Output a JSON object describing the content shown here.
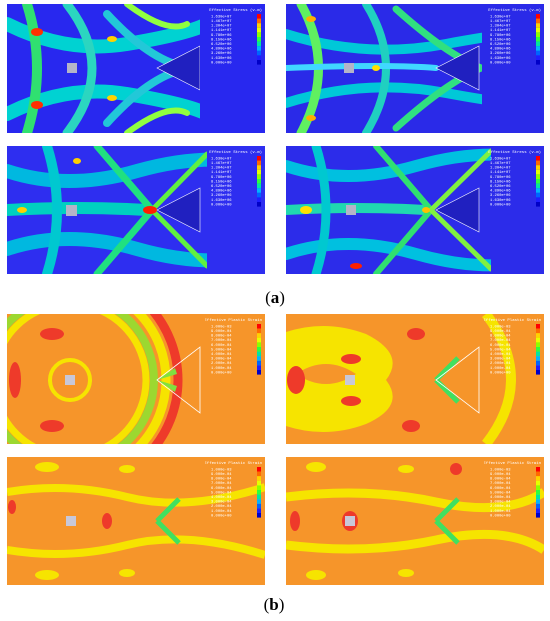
{
  "figure": {
    "caption_a": "a",
    "caption_b": "b",
    "group_a": {
      "legend_title": "Effective Stress (v-m)",
      "legend_values": [
        "1.630e+07",
        "1.467e+07",
        "1.304e+07",
        "1.141e+07",
        "9.780e+06",
        "8.150e+06",
        "6.520e+06",
        "4.890e+06",
        "3.260e+06",
        "1.630e+06",
        "0.000e+00"
      ],
      "legend_colors": [
        "#ff0000",
        "#ff6a00",
        "#ffd200",
        "#e6ff00",
        "#8cff00",
        "#2eff3c",
        "#00e6a0",
        "#00b4ff",
        "#0064ff",
        "#1e1eff",
        "#0000c8"
      ],
      "background_color": "#2828ef"
    },
    "group_b": {
      "legend_title": "Effective Plastic Strain",
      "legend_values": [
        "1.000e-03",
        "9.000e-04",
        "8.000e-04",
        "7.000e-04",
        "6.000e-04",
        "5.000e-04",
        "4.000e-04",
        "3.000e-04",
        "2.000e-04",
        "1.000e-04",
        "0.000e+00"
      ],
      "legend_colors": [
        "#ff0000",
        "#ff6a00",
        "#ffd200",
        "#e6ff00",
        "#8cff00",
        "#2eff3c",
        "#00e6a0",
        "#00b4ff",
        "#0064ff",
        "#1e1eff",
        "#0000c8"
      ],
      "background_color": "#f6952a"
    }
  }
}
